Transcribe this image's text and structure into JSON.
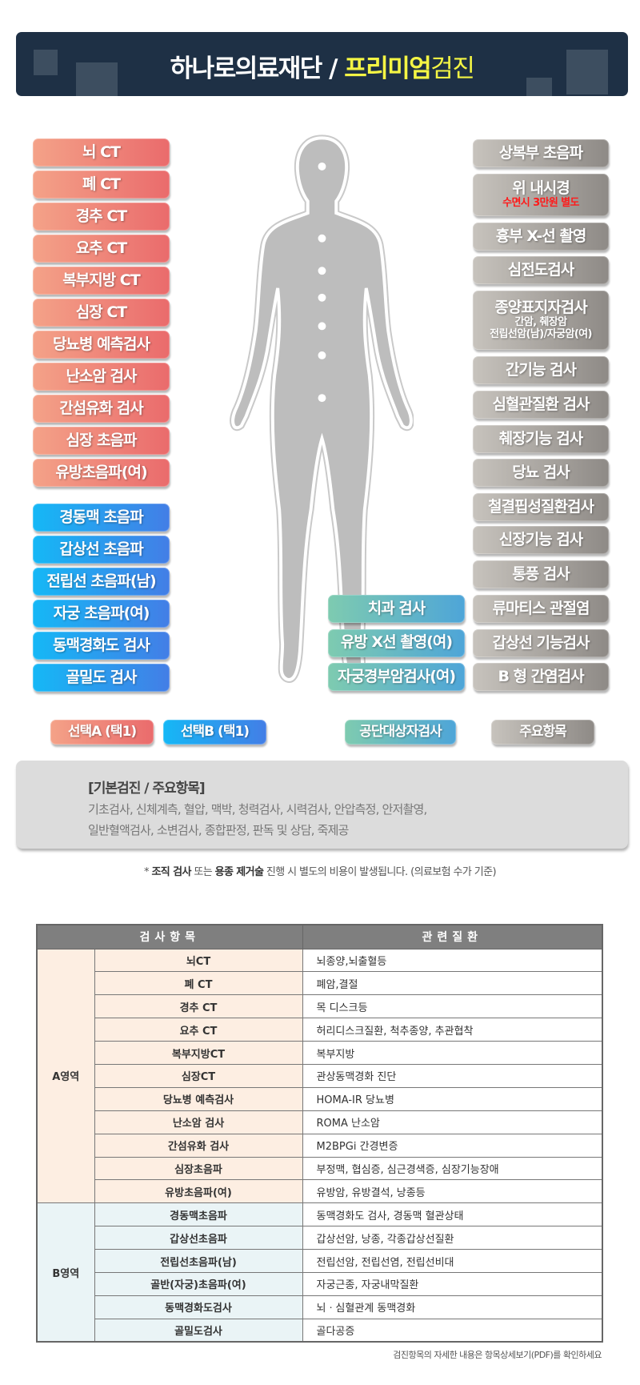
{
  "header": {
    "title_white": "하나로의료재단 / ",
    "title_yellow": "프리미엄",
    "title_yellow2": "검진"
  },
  "colors": {
    "header_bg": "#1e3045",
    "title_accent": "#f4f544",
    "select_a": "#ea6b6c",
    "select_b": "#437ee6",
    "public": "#4ea5d8",
    "main": "#8e8a86"
  },
  "select_a_items": [
    "뇌 CT",
    "폐 CT",
    "경추 CT",
    "요추 CT",
    "복부지방 CT",
    "심장 CT",
    "당뇨병 예측검사",
    "난소암 검사",
    "간섬유화 검사",
    "심장 초음파",
    "유방초음파(여)"
  ],
  "select_b_items": [
    "경동맥 초음파",
    "갑상선 초음파",
    "전립선 초음파(남)",
    "자궁 초음파(여)",
    "동맥경화도 검사",
    "골밀도 검사"
  ],
  "public_items": [
    "치과 검사",
    "유방 X선 촬영(여)",
    "자궁경부암검사(여)"
  ],
  "main_items": [
    {
      "label": "상복부 초음파"
    },
    {
      "label": "위 내시경",
      "sub": "수면시 3만원 별도"
    },
    {
      "label": "흉부 X-선 촬영"
    },
    {
      "label": "심전도검사"
    },
    {
      "label": "종양표지자검사",
      "sub": "간암, 췌장암",
      "sub2": "전립선암(남)/자궁암(여)"
    },
    {
      "label": "간기능 검사"
    },
    {
      "label": "심혈관질환 검사"
    },
    {
      "label": "췌장기능 검사"
    },
    {
      "label": "당뇨 검사"
    },
    {
      "label": "철결핍성질환검사"
    },
    {
      "label": "신장기능 검사"
    },
    {
      "label": "통풍 검사"
    },
    {
      "label": "류마티스 관절염"
    },
    {
      "label": "갑상선 기능검사"
    },
    {
      "label": "B 형 간염검사"
    }
  ],
  "legend": {
    "a": "선택A (택1)",
    "b": "선택B (택1)",
    "public": "공단대상자검사",
    "main": "주요항목"
  },
  "basic": {
    "title": "[기본검진 / 주요항목]",
    "line1": "기초검사, 신체계측, 혈압, 맥박, 청력검사, 시력검사, 안압측정, 안저촬영,",
    "line2": "일반혈액검사, 소변검사, 종합판정, 판독 및 상담, 죽제공"
  },
  "note": {
    "star": "* ",
    "b1": "조직 검사",
    "t1": " 또는 ",
    "b2": "용종 제거술",
    "t2": " 진행 시 별도의 비용이 발생됩니다. (의료보험 수가 기준)"
  },
  "table": {
    "headers": [
      "검사항목",
      "관련질환"
    ],
    "groups": [
      {
        "name": "A영역",
        "rows": [
          [
            "뇌CT",
            "뇌종양,뇌출혈등"
          ],
          [
            "폐 CT",
            "폐암,결절"
          ],
          [
            "경추 CT",
            "목 디스크등"
          ],
          [
            "요추 CT",
            "허리디스크질환, 척추종양, 추관협착"
          ],
          [
            "복부지방CT",
            "복부지방"
          ],
          [
            "심장CT",
            "관상동맥경화 진단"
          ],
          [
            "당뇨병 예측검사",
            "HOMA-IR 당뇨병"
          ],
          [
            "난소암 검사",
            "ROMA 난소암"
          ],
          [
            "간섬유화 검사",
            "M2BPGi 간경변증"
          ],
          [
            "심장초음파",
            "부정맥, 협심증, 심근경색증, 심장기능장애"
          ],
          [
            "유방초음파(여)",
            "유방암, 유방결석, 낭종등"
          ]
        ]
      },
      {
        "name": "B영역",
        "rows": [
          [
            "경동맥초음파",
            "동맥경화도 검사, 경동맥 혈관상태"
          ],
          [
            "갑상선초음파",
            "갑상선암, 낭종, 각종갑상선질환"
          ],
          [
            "전립선초음파(남)",
            "전립선암, 전립선염, 전립선비대"
          ],
          [
            "골반(자궁)초음파(여)",
            "자궁근종, 자궁내막질환"
          ],
          [
            "동맥경화도검사",
            "뇌ㆍ심혈관계 동맥경화"
          ],
          [
            "골밀도검사",
            "골다공증"
          ]
        ]
      }
    ]
  },
  "footnote": "검진항목의 자세한 내용은 항목상세보기(PDF)를 확인하세요"
}
